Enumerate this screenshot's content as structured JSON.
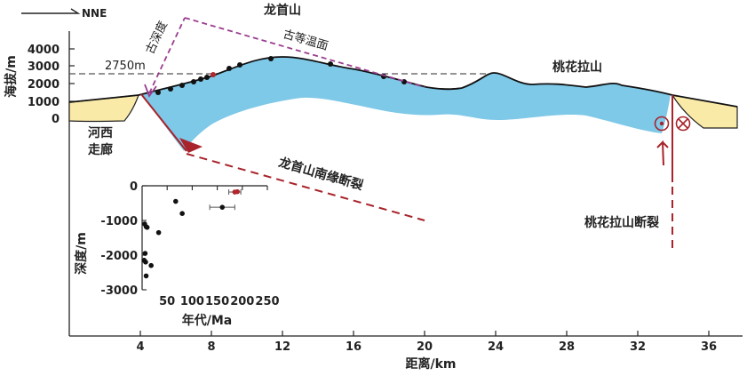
{
  "direction_label": "NNE",
  "mountains": {
    "longshou": "龙首山",
    "taohuala": "桃花拉山"
  },
  "corridor_label": [
    "河西",
    "走廊"
  ],
  "paleo_surface_label": "古等温面",
  "paleo_depth_label": "古深度",
  "reference_altitude_label": "2750m",
  "fault_labels": {
    "longshou_south": "龙首山南缘断裂",
    "taohuala": "桃花拉山断裂"
  },
  "main_axes": {
    "ylabel": "海拔/m",
    "xlabel": "距离/km",
    "y_ticks": [
      "4000",
      "3000",
      "2000",
      "1000",
      "0"
    ],
    "x_ticks": [
      "0",
      "4",
      "8",
      "12",
      "16",
      "20",
      "24",
      "28",
      "32",
      "36"
    ]
  },
  "colors": {
    "basement": "#7ec8e8",
    "basin_fill": "#faeaa8",
    "fault": "#a8232b",
    "paleo_line": "#9b3d8f",
    "reference_line": "#555555",
    "sample_point": "#111111"
  },
  "chart_data": {
    "type": "scatter",
    "xlabel": "年代/Ma",
    "ylabel": "深度/m",
    "xlim": [
      0,
      250
    ],
    "ylim": [
      -3000,
      0
    ],
    "x_ticks": [
      50,
      100,
      150,
      200,
      250
    ],
    "y_ticks": [
      0,
      -1000,
      -2000,
      -3000
    ],
    "series": [
      {
        "points": [
          {
            "x": 5,
            "y": -1100
          },
          {
            "x": 8,
            "y": -1180
          },
          {
            "x": 10,
            "y": -1200
          },
          {
            "x": 6,
            "y": -1950
          },
          {
            "x": 4,
            "y": -2150
          },
          {
            "x": 7,
            "y": -2200
          },
          {
            "x": 18,
            "y": -2300
          },
          {
            "x": 8,
            "y": -2600
          },
          {
            "x": 33,
            "y": -1350
          },
          {
            "x": 67,
            "y": -450
          },
          {
            "x": 80,
            "y": -800
          },
          {
            "x": 160,
            "y": -620
          },
          {
            "x": 185,
            "y": -180
          },
          {
            "x": 190,
            "y": -170
          }
        ]
      }
    ]
  }
}
